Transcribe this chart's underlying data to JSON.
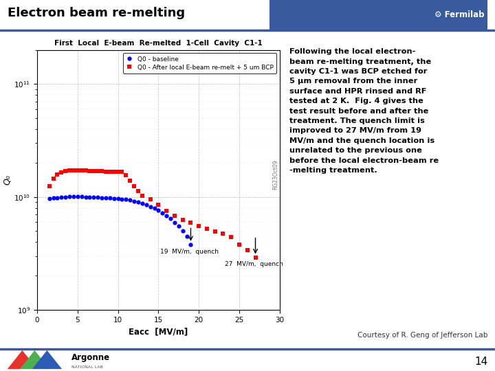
{
  "title": "Electron beam re-melting",
  "slide_number": "14",
  "fermilab_text": "⚙ Fermilab",
  "plot_title": "First  Local  E-beam  Re-melted  1-Cell  Cavity  C1-1",
  "xlabel": "Eacc  [MV/m]",
  "ylabel": "Q₀",
  "legend1": "Q0 - baseline",
  "legend2": "Q0 - After local E-beam re-melt + 5 um BCP",
  "watermark": "RG23Oct09",
  "annotation1": "19  MV/m,  quench",
  "annotation2": "27  MV/m,  quench",
  "body_text": "Following the local electron-\nbeam re-melting treatment, the\ncavity C1-1 was BCP etched for\n5 μm removal from the inner\nsurface and HPR rinsed and RF\ntested at 2 K.  Fig. 4 gives the\ntest result before and after the\ntreatment. The quench limit is\nimproved to 27 MV/m from 19\nMV/m and the quench location is\nunrelated to the previous one\nbefore the local electron-beam re\n-melting treatment.",
  "courtesy_text": "Courtesy of R. Geng of Jefferson Lab",
  "argonne_text": "Argonne",
  "national_lab_text": "NATIONAL LAB",
  "header_color": "#3A5AA0",
  "bottom_bar_color": "#3A5AA0",
  "background_color": "#FFFFFF",
  "text_color": "#000000",
  "blue_data": [
    [
      1.5,
      9700000000.0
    ],
    [
      2.0,
      9800000000.0
    ],
    [
      2.5,
      9850000000.0
    ],
    [
      3.0,
      9900000000.0
    ],
    [
      3.5,
      10000000000.0
    ],
    [
      4.0,
      10100000000.0
    ],
    [
      4.5,
      10100000000.0
    ],
    [
      5.0,
      10100000000.0
    ],
    [
      5.5,
      10050000000.0
    ],
    [
      6.0,
      10000000000.0
    ],
    [
      6.5,
      9950000000.0
    ],
    [
      7.0,
      9900000000.0
    ],
    [
      7.5,
      9900000000.0
    ],
    [
      8.0,
      9850000000.0
    ],
    [
      8.5,
      9800000000.0
    ],
    [
      9.0,
      9750000000.0
    ],
    [
      9.5,
      9700000000.0
    ],
    [
      10.0,
      9650000000.0
    ],
    [
      10.5,
      9600000000.0
    ],
    [
      11.0,
      9550000000.0
    ],
    [
      11.5,
      9400000000.0
    ],
    [
      12.0,
      9200000000.0
    ],
    [
      12.5,
      9000000000.0
    ],
    [
      13.0,
      8800000000.0
    ],
    [
      13.5,
      8500000000.0
    ],
    [
      14.0,
      8200000000.0
    ],
    [
      14.5,
      7900000000.0
    ],
    [
      15.0,
      7600000000.0
    ],
    [
      15.5,
      7200000000.0
    ],
    [
      16.0,
      6800000000.0
    ],
    [
      16.5,
      6400000000.0
    ],
    [
      17.0,
      5900000000.0
    ],
    [
      17.5,
      5500000000.0
    ],
    [
      18.0,
      5000000000.0
    ],
    [
      18.5,
      4500000000.0
    ],
    [
      19.0,
      3800000000.0
    ]
  ],
  "red_data": [
    [
      1.5,
      12500000000.0
    ],
    [
      2.0,
      14500000000.0
    ],
    [
      2.5,
      15800000000.0
    ],
    [
      3.0,
      16500000000.0
    ],
    [
      3.5,
      17000000000.0
    ],
    [
      4.0,
      17200000000.0
    ],
    [
      4.5,
      17300000000.0
    ],
    [
      5.0,
      17300000000.0
    ],
    [
      5.5,
      17200000000.0
    ],
    [
      6.0,
      17100000000.0
    ],
    [
      6.5,
      17000000000.0
    ],
    [
      7.0,
      17000000000.0
    ],
    [
      7.5,
      16900000000.0
    ],
    [
      8.0,
      16900000000.0
    ],
    [
      8.5,
      16800000000.0
    ],
    [
      9.0,
      16700000000.0
    ],
    [
      9.5,
      16700000000.0
    ],
    [
      10.0,
      16700000000.0
    ],
    [
      10.5,
      16600000000.0
    ],
    [
      11.0,
      15500000000.0
    ],
    [
      11.5,
      14000000000.0
    ],
    [
      12.0,
      12500000000.0
    ],
    [
      12.5,
      11300000000.0
    ],
    [
      13.0,
      10300000000.0
    ],
    [
      14.0,
      9500000000.0
    ],
    [
      15.0,
      8500000000.0
    ],
    [
      16.0,
      7500000000.0
    ],
    [
      17.0,
      6800000000.0
    ],
    [
      18.0,
      6300000000.0
    ],
    [
      19.0,
      5900000000.0
    ],
    [
      20.0,
      5500000000.0
    ],
    [
      21.0,
      5200000000.0
    ],
    [
      22.0,
      4950000000.0
    ],
    [
      23.0,
      4700000000.0
    ],
    [
      24.0,
      4400000000.0
    ],
    [
      25.0,
      3800000000.0
    ],
    [
      26.0,
      3400000000.0
    ],
    [
      27.0,
      2900000000.0
    ]
  ]
}
